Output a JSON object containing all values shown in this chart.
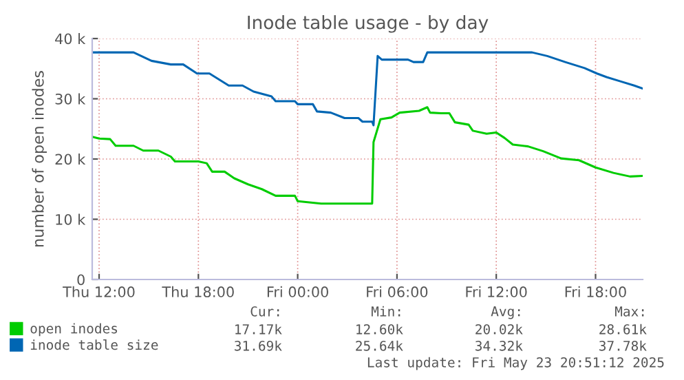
{
  "chart_data": {
    "type": "line",
    "title": "Inode table usage - by day",
    "ylabel": "number of open inodes",
    "xlim": [
      "2025-05-22T11:35",
      "2025-05-23T20:51"
    ],
    "xticks": [
      {
        "value": "2025-05-22T12:00",
        "label": "Thu 12:00"
      },
      {
        "value": "2025-05-22T18:00",
        "label": "Thu 18:00"
      },
      {
        "value": "2025-05-23T00:00",
        "label": "Fri 00:00"
      },
      {
        "value": "2025-05-23T06:00",
        "label": "Fri 06:00"
      },
      {
        "value": "2025-05-23T12:00",
        "label": "Fri 12:00"
      },
      {
        "value": "2025-05-23T18:00",
        "label": "Fri 18:00"
      }
    ],
    "ylim": [
      0,
      40
    ],
    "yticks": [
      0,
      {
        "value": 10,
        "label": "10 k"
      },
      {
        "value": 20,
        "label": "20 k"
      },
      {
        "value": 30,
        "label": "30 k"
      },
      {
        "value": 40,
        "label": "40 k"
      }
    ],
    "grid": true,
    "legend": "bottom",
    "marker": "none",
    "line_style": "solid",
    "series": [
      {
        "name": "open inodes",
        "color": "#00cc00",
        "x": [
          "2025-05-22T11:35",
          "2025-05-22T12:00",
          "2025-05-22T12:40",
          "2025-05-22T13:00",
          "2025-05-22T14:05",
          "2025-05-22T14:40",
          "2025-05-22T15:35",
          "2025-05-22T16:20",
          "2025-05-22T16:35",
          "2025-05-22T18:00",
          "2025-05-22T18:30",
          "2025-05-22T18:50",
          "2025-05-22T19:35",
          "2025-05-22T20:10",
          "2025-05-22T21:00",
          "2025-05-22T21:50",
          "2025-05-22T22:40",
          "2025-05-22T23:50",
          "2025-05-23T00:00",
          "2025-05-23T01:25",
          "2025-05-23T04:30",
          "2025-05-23T04:35",
          "2025-05-23T05:00",
          "2025-05-23T05:40",
          "2025-05-23T06:10",
          "2025-05-23T07:20",
          "2025-05-23T07:50",
          "2025-05-23T08:00",
          "2025-05-23T08:40",
          "2025-05-23T09:10",
          "2025-05-23T09:30",
          "2025-05-23T10:20",
          "2025-05-23T10:35",
          "2025-05-23T11:25",
          "2025-05-23T12:00",
          "2025-05-23T12:30",
          "2025-05-23T13:00",
          "2025-05-23T13:55",
          "2025-05-23T14:50",
          "2025-05-23T15:55",
          "2025-05-23T17:00",
          "2025-05-23T18:00",
          "2025-05-23T19:05",
          "2025-05-23T20:05",
          "2025-05-23T20:51"
        ],
        "values": [
          23.7,
          23.4,
          23.3,
          22.2,
          22.2,
          21.4,
          21.4,
          20.4,
          19.6,
          19.6,
          19.3,
          17.9,
          17.9,
          16.8,
          15.8,
          15.0,
          13.9,
          13.9,
          13.0,
          12.6,
          12.6,
          22.8,
          26.6,
          26.9,
          27.7,
          28.0,
          28.6,
          27.7,
          27.6,
          27.6,
          26.1,
          25.7,
          24.7,
          24.2,
          24.4,
          23.5,
          22.4,
          22.1,
          21.3,
          20.1,
          19.8,
          18.6,
          17.7,
          17.1,
          17.2
        ]
      },
      {
        "name": "inode table size",
        "color": "#0066b3",
        "x": [
          "2025-05-22T11:35",
          "2025-05-22T14:05",
          "2025-05-22T15:10",
          "2025-05-22T16:20",
          "2025-05-22T17:05",
          "2025-05-22T17:55",
          "2025-05-22T18:40",
          "2025-05-22T19:50",
          "2025-05-22T20:40",
          "2025-05-22T21:20",
          "2025-05-22T22:25",
          "2025-05-22T22:40",
          "2025-05-22T23:50",
          "2025-05-23T00:00",
          "2025-05-23T00:55",
          "2025-05-23T01:10",
          "2025-05-23T02:00",
          "2025-05-23T02:50",
          "2025-05-23T03:40",
          "2025-05-23T03:55",
          "2025-05-23T04:30",
          "2025-05-23T04:35",
          "2025-05-23T04:50",
          "2025-05-23T05:05",
          "2025-05-23T06:40",
          "2025-05-23T07:00",
          "2025-05-23T07:35",
          "2025-05-23T07:50",
          "2025-05-23T14:10",
          "2025-05-23T15:05",
          "2025-05-23T16:10",
          "2025-05-23T17:20",
          "2025-05-23T18:05",
          "2025-05-23T18:40",
          "2025-05-23T19:30",
          "2025-05-23T20:20",
          "2025-05-23T20:51"
        ],
        "values": [
          37.7,
          37.7,
          36.3,
          35.7,
          35.7,
          34.2,
          34.2,
          32.2,
          32.2,
          31.2,
          30.4,
          29.6,
          29.6,
          29.1,
          29.1,
          27.9,
          27.7,
          26.8,
          26.8,
          26.2,
          26.2,
          25.6,
          37.1,
          36.5,
          36.5,
          36.1,
          36.1,
          37.7,
          37.7,
          37.1,
          36.1,
          35.1,
          34.2,
          33.6,
          32.9,
          32.2,
          31.7
        ]
      }
    ],
    "annotations": [
      "Cur:",
      "Min:",
      "Avg:",
      "Max:",
      "17.17k",
      "12.60k",
      "20.02k",
      "28.61k",
      "31.69k",
      "25.64k",
      "34.32k",
      "37.78k",
      "Last update: Fri May 23 20:51:12 2025"
    ]
  }
}
